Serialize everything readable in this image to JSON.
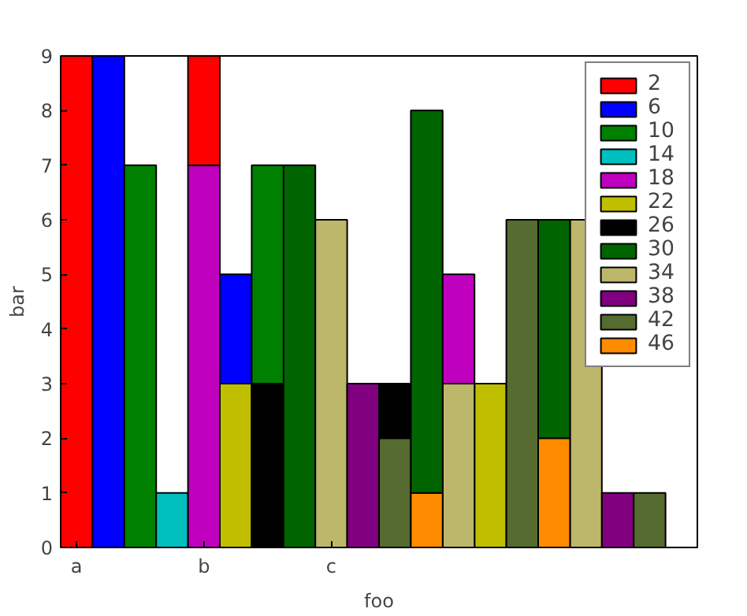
{
  "chart_data": {
    "type": "bar",
    "xlabel": "foo",
    "ylabel": "bar",
    "stacked": true,
    "categories": [
      "a",
      null,
      null,
      null,
      "b",
      null,
      null,
      null,
      "c",
      null,
      null,
      null,
      null,
      null,
      null,
      null,
      null,
      null,
      null,
      null
    ],
    "ylim": [
      0,
      9
    ],
    "yticks": [
      0,
      1,
      2,
      3,
      4,
      5,
      6,
      7,
      8,
      9
    ],
    "grid": false,
    "legend": "top right",
    "series": [
      {
        "name": "2",
        "color": "#ff0000",
        "values": [
          9,
          null,
          null,
          null,
          null,
          null,
          null,
          null,
          null,
          null,
          null,
          null,
          null,
          null,
          null,
          null,
          null,
          null,
          null,
          null
        ]
      },
      {
        "name": "6",
        "color": "#0000ff",
        "values": [
          null,
          9,
          null,
          null,
          null,
          null,
          null,
          null,
          null,
          null,
          null,
          null,
          null,
          null,
          null,
          null,
          null,
          null,
          null,
          null
        ]
      },
      {
        "name": "10",
        "color": "#008000",
        "values": [
          null,
          null,
          7,
          null,
          null,
          null,
          null,
          null,
          null,
          null,
          null,
          null,
          null,
          null,
          null,
          null,
          null,
          null,
          null,
          null
        ]
      },
      {
        "name": "14",
        "color": "#00bfbf",
        "values": [
          null,
          null,
          null,
          1,
          null,
          null,
          null,
          null,
          null,
          null,
          null,
          null,
          null,
          null,
          null,
          null,
          null,
          null,
          null,
          null
        ]
      },
      {
        "name": "18",
        "color": "#bf00bf",
        "values": [
          null,
          null,
          null,
          null,
          7,
          null,
          null,
          null,
          null,
          null,
          null,
          null,
          null,
          null,
          null,
          null,
          null,
          null,
          null,
          null
        ]
      },
      {
        "name": "22",
        "color": "#bfbf00",
        "values": [
          null,
          null,
          null,
          null,
          null,
          3,
          null,
          null,
          null,
          null,
          null,
          null,
          null,
          3,
          null,
          null,
          null,
          null,
          null,
          null
        ]
      },
      {
        "name": "26",
        "color": "#000000",
        "values": [
          null,
          null,
          null,
          null,
          null,
          null,
          3,
          null,
          null,
          null,
          null,
          null,
          null,
          null,
          null,
          null,
          null,
          null,
          null,
          null
        ]
      },
      {
        "name": "30",
        "color": "#006400",
        "values": [
          null,
          null,
          null,
          null,
          null,
          null,
          null,
          7,
          null,
          null,
          null,
          null,
          null,
          null,
          null,
          null,
          null,
          null,
          null,
          null
        ]
      },
      {
        "name": "34",
        "color": "#bdb76b",
        "values": [
          null,
          null,
          null,
          null,
          null,
          null,
          null,
          null,
          6,
          null,
          null,
          null,
          3,
          null,
          null,
          null,
          6,
          null,
          null,
          null
        ]
      },
      {
        "name": "38",
        "color": "#800080",
        "values": [
          null,
          null,
          null,
          null,
          null,
          null,
          null,
          null,
          null,
          3,
          null,
          null,
          null,
          null,
          null,
          null,
          null,
          1,
          null,
          null
        ]
      },
      {
        "name": "42",
        "color": "#556b2f",
        "values": [
          null,
          null,
          null,
          null,
          null,
          null,
          null,
          null,
          null,
          null,
          2,
          null,
          null,
          null,
          6,
          null,
          null,
          null,
          1,
          null
        ]
      },
      {
        "name": "46",
        "color": "#ff8c00",
        "values": [
          null,
          null,
          null,
          null,
          null,
          null,
          null,
          null,
          null,
          null,
          null,
          1,
          null,
          null,
          null,
          2,
          null,
          null,
          null,
          null
        ]
      },
      {
        "color": "#ff0000",
        "values": [
          null,
          null,
          null,
          null,
          2,
          null,
          null,
          null,
          null,
          null,
          null,
          null,
          null,
          null,
          null,
          null,
          null,
          null,
          null,
          null
        ]
      },
      {
        "color": "#0000ff",
        "values": [
          null,
          null,
          null,
          null,
          null,
          2,
          null,
          null,
          null,
          null,
          null,
          null,
          null,
          null,
          null,
          null,
          null,
          null,
          null,
          null
        ]
      },
      {
        "color": "#008000",
        "values": [
          null,
          null,
          null,
          null,
          null,
          null,
          4,
          null,
          null,
          null,
          null,
          null,
          null,
          null,
          null,
          null,
          null,
          null,
          null,
          null
        ]
      },
      {
        "color": "#000000",
        "values": [
          null,
          null,
          null,
          null,
          null,
          null,
          null,
          null,
          null,
          null,
          1,
          null,
          null,
          null,
          null,
          null,
          null,
          null,
          null,
          null
        ]
      },
      {
        "color": "#006400",
        "values": [
          null,
          null,
          null,
          null,
          null,
          null,
          null,
          null,
          null,
          null,
          null,
          7,
          null,
          null,
          null,
          4,
          null,
          null,
          null,
          null
        ]
      },
      {
        "color": "#bf00bf",
        "values": [
          null,
          null,
          null,
          null,
          null,
          null,
          null,
          null,
          null,
          null,
          null,
          null,
          2,
          null,
          null,
          null,
          null,
          null,
          null,
          null
        ]
      }
    ]
  }
}
